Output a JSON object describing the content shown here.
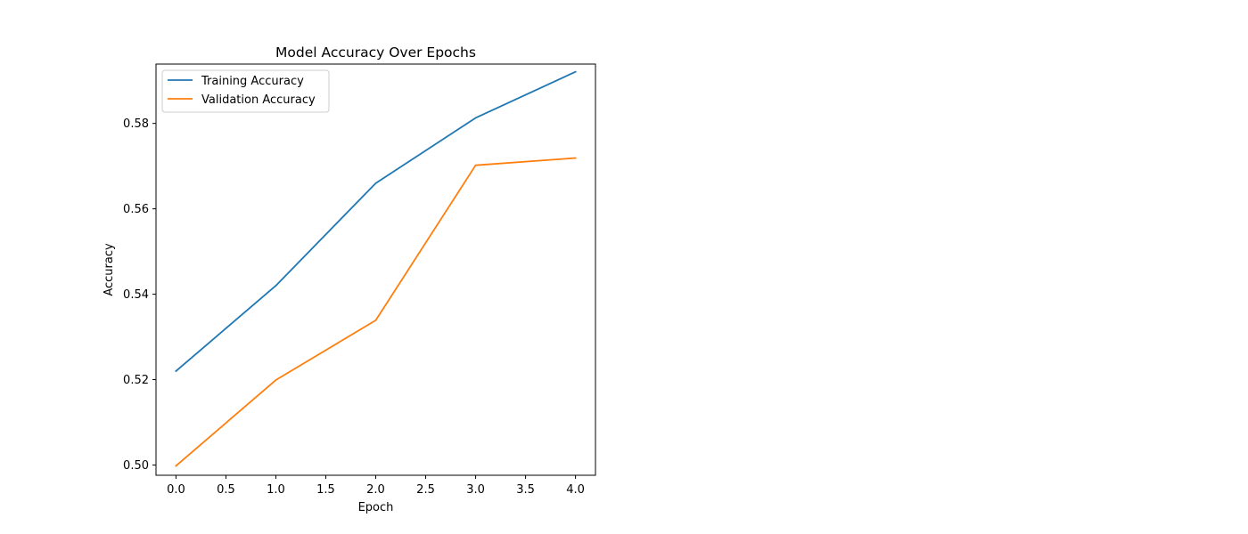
{
  "chart_data": {
    "type": "line",
    "title": "Model Accuracy Over Epochs",
    "xlabel": "Epoch",
    "ylabel": "Accuracy",
    "x": [
      0,
      1,
      2,
      3,
      4
    ],
    "xlim": [
      -0.2,
      4.2
    ],
    "ylim": [
      0.4976,
      0.5939
    ],
    "xticks": [
      0.0,
      0.5,
      1.0,
      1.5,
      2.0,
      2.5,
      3.0,
      3.5,
      4.0
    ],
    "yticks": [
      0.5,
      0.52,
      0.54,
      0.56,
      0.58
    ],
    "xtick_labels": [
      "0.0",
      "0.5",
      "1.0",
      "1.5",
      "2.0",
      "2.5",
      "3.0",
      "3.5",
      "4.0"
    ],
    "ytick_labels": [
      "0.50",
      "0.52",
      "0.54",
      "0.56",
      "0.58"
    ],
    "grid": false,
    "legend_position": "upper-left",
    "series": [
      {
        "name": "Training Accuracy",
        "color": "#1f77b4",
        "values": [
          0.522,
          0.542,
          0.566,
          0.5813,
          0.5921
        ]
      },
      {
        "name": "Validation Accuracy",
        "color": "#ff7f0e",
        "values": [
          0.4998,
          0.5199,
          0.5339,
          0.5702,
          0.5719
        ]
      }
    ]
  }
}
